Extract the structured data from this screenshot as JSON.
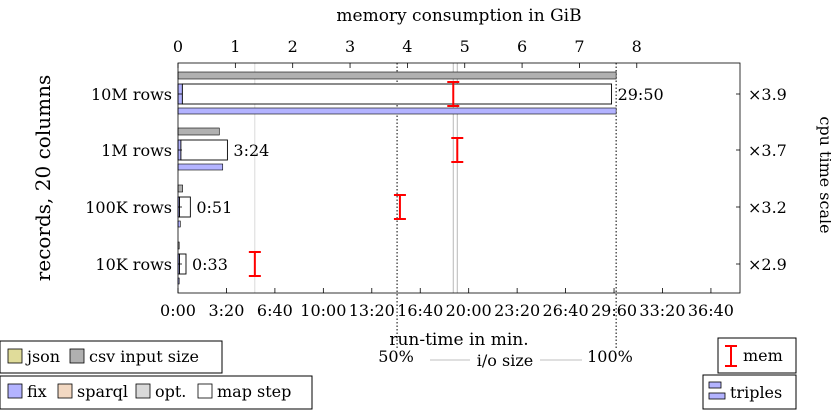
{
  "chart_data": {
    "type": "bar",
    "orientation": "horizontal",
    "categories": [
      "10M rows",
      "1M rows",
      "100K rows",
      "10K rows"
    ],
    "ylabel": "records, 20 columns",
    "top_axis": {
      "label": "memory consumption in GiB",
      "range": [
        0,
        9.8
      ],
      "ticks": [
        "0",
        "1",
        "2",
        "3",
        "4",
        "5",
        "6",
        "7",
        "8"
      ]
    },
    "bottom_axis": {
      "label": "run-time in min.",
      "range": [
        0,
        2320
      ],
      "ticks": [
        "0:00",
        "3:20",
        "6:40",
        "10:00",
        "13:20",
        "16:40",
        "20:00",
        "23:20",
        "26:40",
        "29:60",
        "33:20",
        "36:40"
      ]
    },
    "right_axis": {
      "label": "cpu time scale",
      "ticks": [
        "×3.9",
        "×3.7",
        "×3.2",
        "×2.9"
      ]
    },
    "series": [
      {
        "name": "csv input size",
        "unit": "GiB",
        "values": [
          7.64,
          0.72,
          0.08,
          0.01
        ]
      },
      {
        "name": "json",
        "unit": "GiB",
        "values": [
          0.0,
          0.0,
          0.0,
          0.0
        ]
      },
      {
        "name": "fix",
        "unit": "min",
        "values": [
          0.3,
          0.2,
          0.1,
          0.05
        ]
      },
      {
        "name": "sparql",
        "unit": "min",
        "values": [
          0.0,
          0.0,
          0.0,
          0.0
        ]
      },
      {
        "name": "opt.",
        "unit": "min",
        "values": [
          0.0,
          0.0,
          0.0,
          0.0
        ]
      },
      {
        "name": "map step",
        "unit": "min",
        "values": [
          29.83,
          3.4,
          0.85,
          0.55
        ]
      },
      {
        "name": "triples",
        "unit": "GiB",
        "values": [
          7.64,
          0.78,
          0.04,
          0.02
        ]
      }
    ],
    "runtime_labels": [
      "29:50",
      "3:24",
      "0:51",
      "0:33"
    ],
    "mem_errorbars_gib": [
      {
        "center": 4.8,
        "low": 4.72,
        "high": 4.88
      },
      {
        "center": 4.87,
        "low": 4.79,
        "high": 4.95
      },
      {
        "center": 3.87,
        "low": 3.79,
        "high": 3.95
      },
      {
        "center": 1.34,
        "low": 1.26,
        "high": 1.42
      }
    ],
    "io_size_scale": {
      "label": "i/o size",
      "marks": [
        {
          "label": "50%",
          "value_gib": 3.82
        },
        {
          "label": "100%",
          "value_gib": 7.64
        }
      ]
    },
    "reference_lines_gib": [
      4.8,
      4.87
    ],
    "legend": {
      "data_sources": [
        "json",
        "csv input size"
      ],
      "steps": [
        "fix",
        "sparql",
        "opt.",
        "map step"
      ],
      "mem": "mem",
      "triples": "triples"
    },
    "colors": {
      "json": "#e0dc9a",
      "csv": "#b0b0b0",
      "fix": "#b3b3ff",
      "sparql": "#f2d8c2",
      "opt": "#d9d9d9",
      "map": "#ffffff",
      "triples": "#b3b3ff",
      "mem": "#ff0000"
    }
  }
}
